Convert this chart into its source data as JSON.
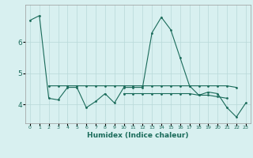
{
  "xlabel": "Humidex (Indice chaleur)",
  "ylabel": "",
  "x": [
    0,
    1,
    2,
    3,
    4,
    5,
    6,
    7,
    8,
    9,
    10,
    11,
    12,
    13,
    14,
    15,
    16,
    17,
    18,
    19,
    20,
    21,
    22,
    23
  ],
  "main_line": [
    6.7,
    6.85,
    4.2,
    4.15,
    4.55,
    4.55,
    3.9,
    4.1,
    4.35,
    4.05,
    4.55,
    4.55,
    4.55,
    6.3,
    6.8,
    6.4,
    5.5,
    4.6,
    4.3,
    4.4,
    4.35,
    3.9,
    3.6,
    4.05
  ],
  "flat_line1": [
    null,
    null,
    4.6,
    4.6,
    4.6,
    4.6,
    4.6,
    4.6,
    4.6,
    4.6,
    4.6,
    4.6,
    4.6,
    4.6,
    4.6,
    4.6,
    4.6,
    4.6,
    4.6,
    4.6,
    4.6,
    4.6,
    4.55,
    null
  ],
  "flat_line2": [
    null,
    null,
    null,
    null,
    null,
    null,
    null,
    null,
    null,
    null,
    4.35,
    4.35,
    4.35,
    4.35,
    4.35,
    4.35,
    4.35,
    4.35,
    4.3,
    4.3,
    4.25,
    4.2,
    null,
    null
  ],
  "line_color": "#1a6b5a",
  "bg_color": "#d8f0f0",
  "grid_color": "#b8d8d8",
  "yticks": [
    4,
    5,
    6
  ],
  "xtick_labels": [
    "0",
    "1",
    "2",
    "3",
    "4",
    "5",
    "6",
    "7",
    "8",
    "9",
    "10",
    "11",
    "12",
    "13",
    "14",
    "15",
    "16",
    "17",
    "18",
    "19",
    "20",
    "21",
    "22",
    "23"
  ],
  "ylim": [
    3.4,
    7.2
  ],
  "xlim": [
    -0.5,
    23.5
  ]
}
